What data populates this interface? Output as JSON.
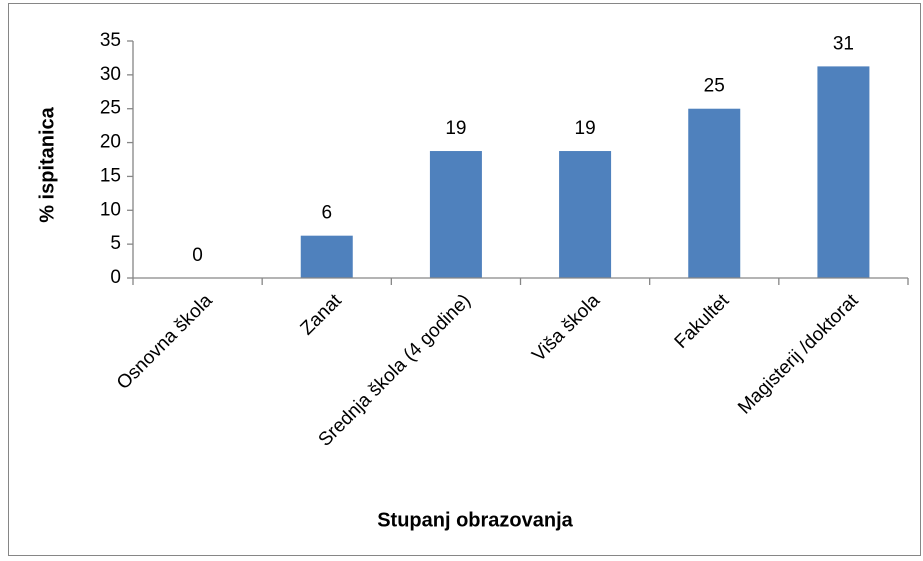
{
  "chart_data": {
    "type": "bar",
    "x_label": "Stupanj obrazovanja",
    "y_label": "% ispitanica",
    "categories": [
      "Osnovna škola",
      "Zanat",
      "Srednja škola (4 godine)",
      "Viša škola",
      "Fakultet",
      "Magisterij /doktorat"
    ],
    "values": [
      0,
      6.25,
      18.75,
      18.75,
      25,
      31.25
    ],
    "value_labels": [
      "0",
      "6",
      "19",
      "19",
      "25",
      "31"
    ],
    "color": "#4f81bd",
    "ylim": [
      0,
      35
    ],
    "yticks": [
      0,
      5,
      10,
      15,
      20,
      25,
      30,
      35
    ],
    "grid": false
  }
}
